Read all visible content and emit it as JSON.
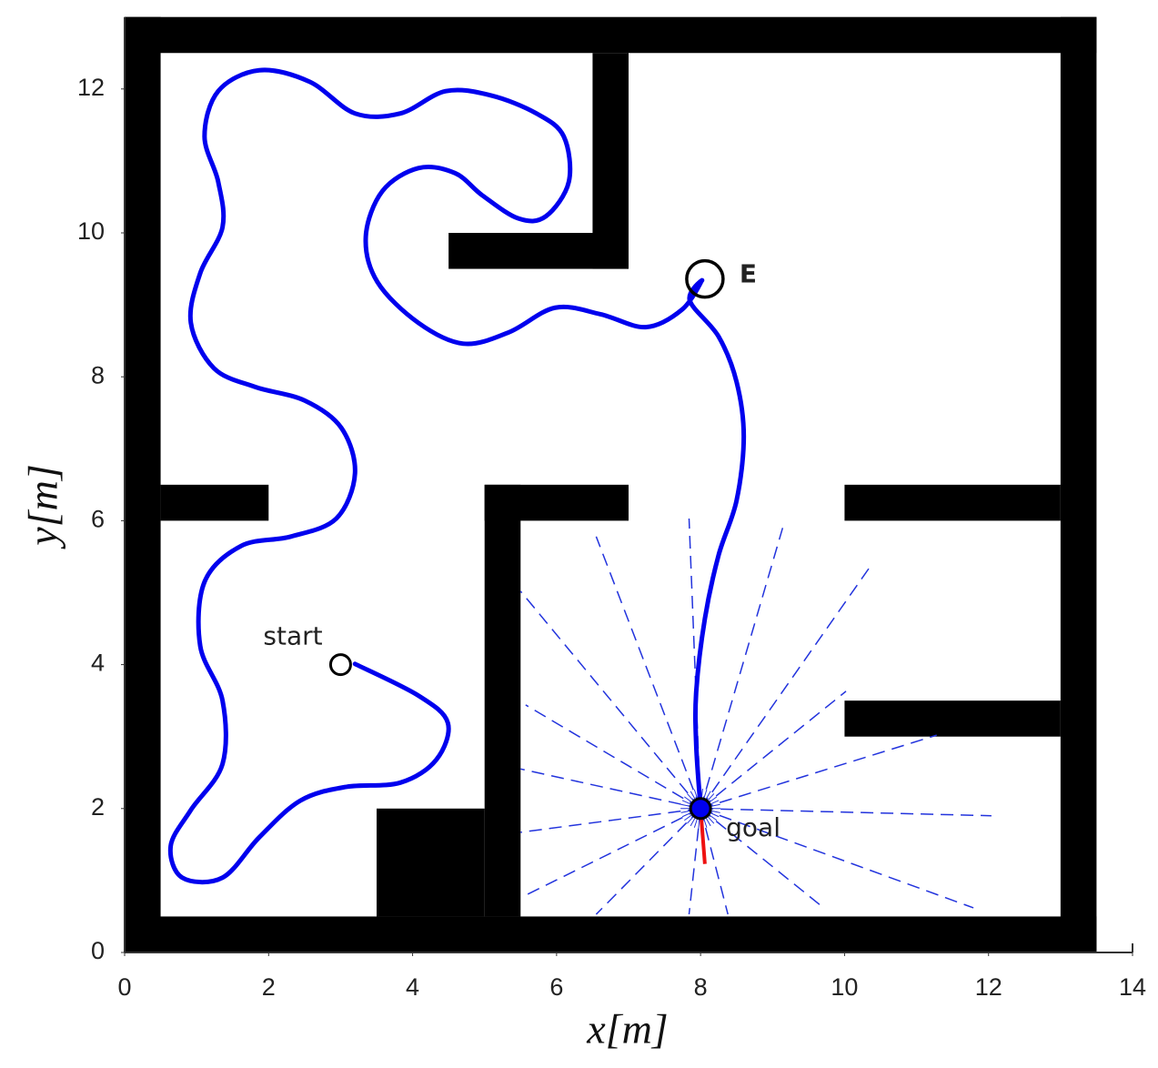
{
  "chart_data": {
    "type": "trajectory",
    "xlabel": "x[m]",
    "ylabel": "y[m]",
    "xlim": [
      0,
      14
    ],
    "ylim": [
      0,
      13
    ],
    "xticks": [
      0,
      2,
      4,
      6,
      8,
      10,
      12,
      14
    ],
    "yticks": [
      0,
      2,
      4,
      6,
      8,
      10,
      12
    ],
    "wall_color": "#000000",
    "walls": [
      {
        "x": [
          0,
          0.5
        ],
        "y": [
          0,
          13
        ]
      },
      {
        "x": [
          13,
          13.5
        ],
        "y": [
          0,
          13
        ]
      },
      {
        "x": [
          0,
          13.5
        ],
        "y": [
          0,
          0.5
        ]
      },
      {
        "x": [
          0,
          13.5
        ],
        "y": [
          12.5,
          13
        ]
      },
      {
        "x": [
          6.5,
          7
        ],
        "y": [
          9.5,
          12.5
        ]
      },
      {
        "x": [
          4.5,
          7
        ],
        "y": [
          9.5,
          10
        ]
      },
      {
        "x": [
          0.5,
          2
        ],
        "y": [
          6,
          6.5
        ]
      },
      {
        "x": [
          5,
          7
        ],
        "y": [
          6,
          6.5
        ]
      },
      {
        "x": [
          5,
          5.5
        ],
        "y": [
          0.5,
          6.5
        ]
      },
      {
        "x": [
          3.5,
          5
        ],
        "y": [
          0.5,
          2
        ]
      },
      {
        "x": [
          10,
          13
        ],
        "y": [
          6,
          6.5
        ]
      },
      {
        "x": [
          10,
          13
        ],
        "y": [
          3,
          3.5
        ]
      }
    ],
    "path": {
      "color": "#0000ee",
      "x": [
        3.2,
        4.08,
        4.49,
        4.33,
        3.83,
        3.07,
        2.44,
        1.87,
        1.36,
        0.8,
        0.64,
        0.92,
        1.36,
        1.36,
        1.05,
        1.11,
        1.62,
        2.31,
        2.94,
        3.2,
        3.01,
        2.5,
        1.81,
        1.24,
        0.92,
        1.05,
        1.36,
        1.3,
        1.11,
        1.3,
        1.87,
        2.57,
        3.2,
        3.83,
        4.46,
        5.09,
        5.72,
        6.1,
        6.17,
        5.85,
        5.47,
        4.97,
        4.59,
        4.08,
        3.58,
        3.35,
        3.51,
        4.08,
        4.71,
        5.34,
        5.98,
        6.61,
        7.24,
        7.75,
        8.02,
        7.85,
        8.25,
        8.5,
        8.6,
        8.5,
        8.25,
        8.06,
        7.94,
        7.94,
        8.0
      ],
      "y": [
        4.01,
        3.57,
        3.19,
        2.68,
        2.36,
        2.3,
        2.11,
        1.6,
        1.04,
        1.04,
        1.48,
        1.98,
        2.62,
        3.5,
        4.26,
        5.15,
        5.65,
        5.78,
        6.03,
        6.66,
        7.29,
        7.67,
        7.86,
        8.12,
        8.75,
        9.44,
        10.08,
        10.71,
        11.34,
        11.97,
        12.26,
        12.1,
        11.66,
        11.66,
        11.97,
        11.91,
        11.66,
        11.34,
        10.71,
        10.23,
        10.2,
        10.52,
        10.83,
        10.9,
        10.58,
        9.95,
        9.32,
        8.75,
        8.46,
        8.62,
        8.96,
        8.87,
        8.69,
        8.94,
        9.34,
        9.06,
        8.56,
        7.93,
        7.17,
        6.28,
        5.52,
        4.64,
        3.63,
        2.87,
        2.01
      ]
    },
    "rays": {
      "color": "#2233dd",
      "origin": [
        8,
        2
      ],
      "x": [
        7.84,
        6.55,
        5.5,
        5.57,
        5.5,
        5.5,
        5.54,
        6.55,
        7.84,
        8.38,
        9.71,
        11.79,
        12.04,
        11.28,
        10.02,
        10.34,
        9.14
      ],
      "y": [
        6.03,
        5.78,
        5.02,
        3.44,
        2.55,
        1.67,
        0.78,
        0.53,
        0.53,
        0.53,
        0.62,
        0.62,
        1.9,
        3.02,
        3.63,
        5.34,
        5.9
      ]
    },
    "heading": {
      "color": "#ee1111",
      "x": [
        8,
        8.06
      ],
      "y": [
        2,
        1.23
      ]
    },
    "markers": [
      {
        "label": "start",
        "x": 3,
        "y": 4,
        "fill": "#ffffff"
      },
      {
        "label": "goal",
        "x": 8,
        "y": 2,
        "fill": "#0000ee"
      },
      {
        "label": "E",
        "x": 8.06,
        "y": 9.36,
        "fill": "none"
      }
    ]
  }
}
